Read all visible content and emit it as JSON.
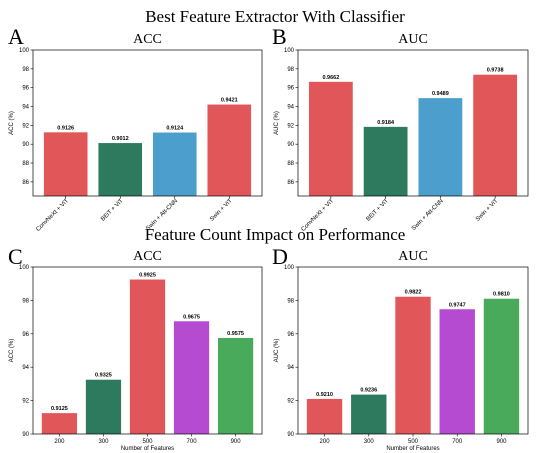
{
  "figure": {
    "section_titles": [
      "Best Feature Extractor With Classifier",
      "Feature Count Impact on Performance"
    ]
  },
  "chart_data": [
    {
      "panel": "A",
      "type": "bar",
      "title": "ACC",
      "ylabel": "ACC (%)",
      "xlabel": "",
      "categories": [
        "ConvNeXt + ViT",
        "BEiT + ViT",
        "Swin + Att-CNN",
        "Swin + ViT"
      ],
      "values": [
        91.26,
        90.12,
        91.24,
        94.21
      ],
      "data_labels": [
        "0.9126",
        "0.9012",
        "0.9124",
        "0.9421"
      ],
      "colors": [
        "#e15759",
        "#2e7a5e",
        "#4c9fcc",
        "#e15759"
      ],
      "ylim": [
        84.5,
        100
      ],
      "yticks": [
        86,
        88,
        90,
        92,
        94,
        96,
        98,
        100
      ],
      "rotated_xticks": true,
      "grid": false
    },
    {
      "panel": "B",
      "type": "bar",
      "title": "AUC",
      "ylabel": "AUC (%)",
      "xlabel": "",
      "categories": [
        "ConvNeXt + ViT",
        "BEiT + ViT",
        "Swin + Att-CNN",
        "Swin + ViT"
      ],
      "values": [
        96.62,
        91.84,
        94.89,
        97.38
      ],
      "data_labels": [
        "0.9662",
        "0.9184",
        "0.9489",
        "0.9738"
      ],
      "colors": [
        "#e15759",
        "#2e7a5e",
        "#4c9fcc",
        "#e15759"
      ],
      "ylim": [
        84.5,
        100
      ],
      "yticks": [
        86,
        88,
        90,
        92,
        94,
        96,
        98,
        100
      ],
      "rotated_xticks": true,
      "grid": false
    },
    {
      "panel": "C",
      "type": "bar",
      "title": "ACC",
      "ylabel": "ACC (%)",
      "xlabel": "Number of Features",
      "categories": [
        "200",
        "300",
        "500",
        "700",
        "900"
      ],
      "values": [
        91.25,
        93.25,
        99.25,
        96.75,
        95.75
      ],
      "data_labels": [
        "0.9125",
        "0.9325",
        "0.9925",
        "0.9675",
        "0.9575"
      ],
      "colors": [
        "#e15759",
        "#2e7a5e",
        "#e15759",
        "#b44bd1",
        "#4aaa5c"
      ],
      "ylim": [
        90,
        100
      ],
      "yticks": [
        90,
        92,
        94,
        96,
        98,
        100
      ],
      "rotated_xticks": false,
      "grid": false
    },
    {
      "panel": "D",
      "type": "bar",
      "title": "AUC",
      "ylabel": "AUC (%)",
      "xlabel": "Number of Features",
      "categories": [
        "200",
        "300",
        "500",
        "700",
        "900"
      ],
      "values": [
        92.1,
        92.36,
        98.22,
        97.47,
        98.1
      ],
      "data_labels": [
        "0.9210",
        "0.9236",
        "0.9822",
        "0.9747",
        "0.9810"
      ],
      "colors": [
        "#e15759",
        "#2e7a5e",
        "#e15759",
        "#b44bd1",
        "#4aaa5c"
      ],
      "ylim": [
        90,
        100
      ],
      "yticks": [
        90,
        92,
        94,
        96,
        98,
        100
      ],
      "rotated_xticks": false,
      "grid": false
    }
  ]
}
